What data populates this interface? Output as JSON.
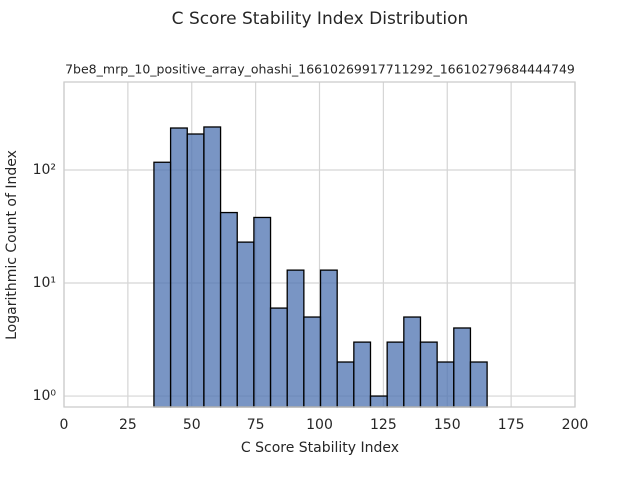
{
  "chart_data": {
    "type": "histogram",
    "title": "C Score Stability Index Distribution",
    "subtitle": "7be8_mrp_10_positive_array_ohashi_16610269917711292_16610279684444749",
    "x_label": "C Score Stability Index",
    "y_label": "Logarithmic Count of Index",
    "bins": [
      35.2,
      41.72,
      48.24,
      54.76,
      61.28,
      67.8,
      74.32,
      80.84,
      87.36,
      93.88,
      100.4,
      106.92,
      113.44,
      119.96,
      126.48,
      133.0,
      139.52,
      146.04,
      152.56,
      159.08,
      165.6
    ],
    "values": [
      117,
      235,
      208,
      240,
      42,
      23,
      38,
      6,
      13,
      5,
      13,
      2,
      3,
      1,
      3,
      5,
      3,
      2,
      4,
      2
    ],
    "color": "#4c72b0",
    "edge_color": "#000000",
    "xlim": [
      0,
      200
    ],
    "xticks": [
      0,
      25,
      50,
      75,
      100,
      125,
      150,
      175,
      200
    ],
    "ylim": [
      0.8,
      600
    ],
    "yticks": [
      {
        "value": 1,
        "label": "10⁰"
      },
      {
        "value": 10,
        "label": "10¹"
      },
      {
        "value": 100,
        "label": "10²"
      }
    ],
    "log_y": true,
    "grid": true
  }
}
